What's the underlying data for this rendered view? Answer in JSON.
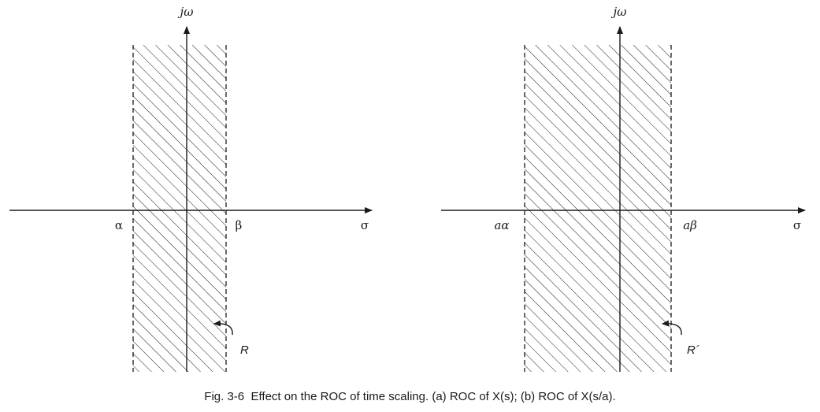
{
  "diagrams": [
    {
      "id": "a",
      "vertical_axis_label": "jω",
      "horizontal_axis_label": "σ",
      "left_bound_label": "α",
      "right_bound_label": "β",
      "region_label": "R"
    },
    {
      "id": "b",
      "vertical_axis_label": "jω",
      "horizontal_axis_label": "σ",
      "left_bound_label": "aα",
      "right_bound_label": "aβ",
      "region_label": "R´"
    }
  ],
  "caption": {
    "number": "Fig. 3-6",
    "text": "Effect on the ROC of time scaling. (a) ROC of X(s); (b) ROC of X(s/a)."
  }
}
